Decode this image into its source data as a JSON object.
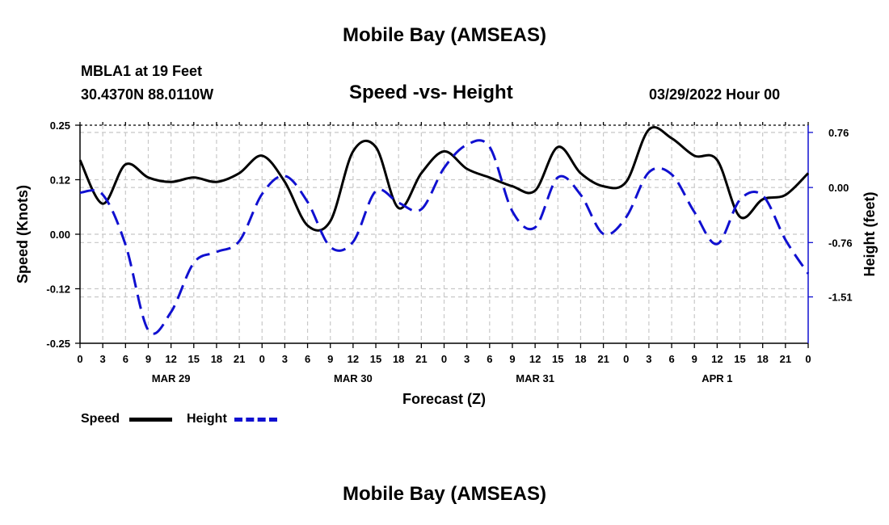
{
  "header": {
    "title": "Mobile Bay (AMSEAS)",
    "station_name": "MBLA1 at 19 Feet",
    "station_coords": "30.4370N  88.0110W",
    "subtitle": "Speed -vs- Height",
    "run_time": "03/29/2022 Hour 00"
  },
  "footer": {
    "title": "Mobile Bay (AMSEAS)"
  },
  "legend": {
    "speed_label": "Speed",
    "height_label": "Height"
  },
  "colors": {
    "speed": "#000000",
    "height": "#1010d0",
    "grid": "#c8c8c8"
  },
  "chart_data": {
    "type": "line",
    "title": "Speed -vs- Height",
    "xlabel": "Forecast (Z)",
    "ylabel_left": "Speed (Knots)",
    "ylabel_right": "Height (feet)",
    "x_range_hours": [
      0,
      96
    ],
    "ylim_left": [
      -0.25,
      0.25
    ],
    "ylim_right": [
      -2.15,
      0.86
    ],
    "x_tick_labels": [
      "0",
      "3",
      "6",
      "9",
      "12",
      "15",
      "18",
      "21",
      "0",
      "3",
      "6",
      "9",
      "12",
      "15",
      "18",
      "21",
      "0",
      "3",
      "6",
      "9",
      "12",
      "15",
      "18",
      "21",
      "0",
      "3",
      "6",
      "9",
      "12",
      "15",
      "18",
      "21",
      "0"
    ],
    "day_labels": [
      {
        "hour": 12,
        "label": "MAR 29"
      },
      {
        "hour": 36,
        "label": "MAR 30"
      },
      {
        "hour": 60,
        "label": "MAR 31"
      },
      {
        "hour": 84,
        "label": "APR 1"
      }
    ],
    "y_left_ticks": [
      {
        "value": 0.25,
        "label": "0.25"
      },
      {
        "value": 0.125,
        "label": "0.12"
      },
      {
        "value": 0.0,
        "label": "0.00"
      },
      {
        "value": -0.125,
        "label": "-0.12"
      },
      {
        "value": -0.25,
        "label": "-0.25"
      }
    ],
    "y_right_ticks": [
      {
        "value": 0.76,
        "label": "0.76"
      },
      {
        "value": 0.0,
        "label": "0.00"
      },
      {
        "value": -0.76,
        "label": "-0.76"
      },
      {
        "value": -1.51,
        "label": "-1.51"
      }
    ],
    "series": [
      {
        "name": "Speed",
        "axis": "left",
        "style": "solid",
        "x": [
          0,
          3,
          6,
          9,
          12,
          15,
          18,
          21,
          24,
          27,
          30,
          33,
          36,
          39,
          42,
          45,
          48,
          51,
          54,
          57,
          60,
          63,
          66,
          69,
          72,
          75,
          78,
          81,
          84,
          87,
          90,
          93,
          96
        ],
        "values": [
          0.17,
          0.07,
          0.16,
          0.13,
          0.12,
          0.13,
          0.12,
          0.14,
          0.18,
          0.12,
          0.02,
          0.03,
          0.19,
          0.2,
          0.06,
          0.14,
          0.19,
          0.15,
          0.13,
          0.11,
          0.1,
          0.2,
          0.14,
          0.11,
          0.12,
          0.24,
          0.22,
          0.18,
          0.17,
          0.04,
          0.08,
          0.09,
          0.14
        ]
      },
      {
        "name": "Height",
        "axis": "right",
        "style": "dashed",
        "x": [
          0,
          3,
          6,
          9,
          12,
          15,
          18,
          21,
          24,
          27,
          30,
          33,
          36,
          39,
          42,
          45,
          48,
          51,
          54,
          57,
          60,
          63,
          66,
          69,
          72,
          75,
          78,
          81,
          84,
          87,
          90,
          93,
          96
        ],
        "values": [
          -0.07,
          -0.1,
          -0.79,
          -1.97,
          -1.72,
          -1.04,
          -0.89,
          -0.74,
          -0.09,
          0.16,
          -0.2,
          -0.82,
          -0.75,
          -0.05,
          -0.21,
          -0.3,
          0.27,
          0.59,
          0.56,
          -0.33,
          -0.55,
          0.14,
          -0.1,
          -0.64,
          -0.41,
          0.21,
          0.18,
          -0.34,
          -0.78,
          -0.17,
          -0.11,
          -0.72,
          -1.19
        ]
      }
    ]
  }
}
